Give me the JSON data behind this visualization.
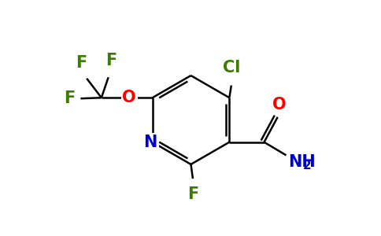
{
  "bg_color": "#ffffff",
  "ring_color": "#000000",
  "line_width": 1.8,
  "atom_colors": {
    "N": "#0000cc",
    "O": "#ff0000",
    "F": "#3a7d00",
    "Cl": "#3a7d00",
    "C": "#000000",
    "NH2": "#0000cc"
  },
  "font_size_main": 13,
  "font_size_sub": 9,
  "font_size_atom": 15
}
